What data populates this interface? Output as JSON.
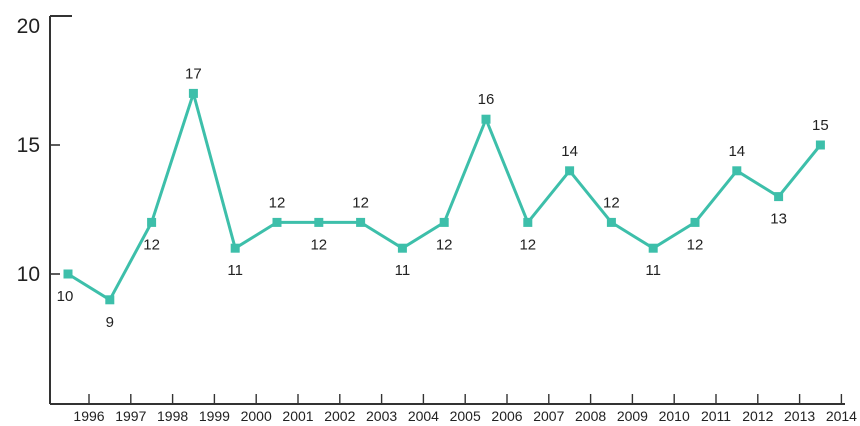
{
  "chart_data": {
    "type": "line",
    "title": "",
    "xlabel": "",
    "ylabel": "",
    "x_tick_labels": [
      "1996",
      "1997",
      "1998",
      "1999",
      "2000",
      "2001",
      "2002",
      "2003",
      "2004",
      "2005",
      "2006",
      "2007",
      "2008",
      "2009",
      "2010",
      "2011",
      "2012",
      "2013",
      "2014"
    ],
    "y_tick_labels": [
      "10",
      "15",
      "20"
    ],
    "ylim": [
      7,
      20
    ],
    "grid": false,
    "legend": "none",
    "series": [
      {
        "color": "#3dbfaa",
        "values": [
          10,
          9,
          12,
          17,
          11,
          12,
          12,
          12,
          11,
          12,
          16,
          12,
          14,
          12,
          11,
          12,
          14,
          13,
          15
        ],
        "value_labels": [
          "10",
          "9",
          "12",
          "17",
          "11",
          "12",
          "12",
          "12",
          "11",
          "12",
          "16",
          "12",
          "14",
          "12",
          "11",
          "12",
          "14",
          "13",
          "15"
        ]
      }
    ]
  }
}
